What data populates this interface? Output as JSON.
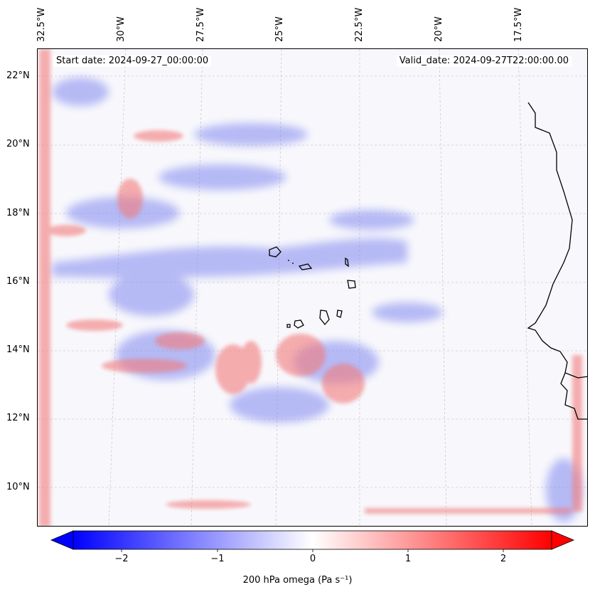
{
  "map": {
    "start_label": "Start date: 2024-09-27_00:00:00",
    "valid_label": "Valid_date: 2024-09-27T22:00:00.00",
    "lon_labels": [
      "32.5°W",
      "30°W",
      "27.5°W",
      "25°W",
      "22.5°W",
      "20°W",
      "17.5°W"
    ],
    "lat_labels": [
      "22°N",
      "20°N",
      "18°N",
      "16°N",
      "14°N",
      "12°N",
      "10°N"
    ],
    "extent": {
      "lon_min": -33.0,
      "lon_max": -16.0,
      "lat_min": 8.9,
      "lat_max": 22.8
    }
  },
  "colorbar": {
    "label": "200 hPa omega (Pa s⁻¹)",
    "ticks": [
      "−2",
      "−1",
      "0",
      "1",
      "2"
    ],
    "tick_values": [
      -2,
      -1,
      0,
      1,
      2
    ],
    "range": [
      -2.5,
      2.5
    ],
    "colormap": "bwr",
    "low_color": "#0000ff",
    "mid_color": "#ffffff",
    "high_color": "#ff0000"
  }
}
